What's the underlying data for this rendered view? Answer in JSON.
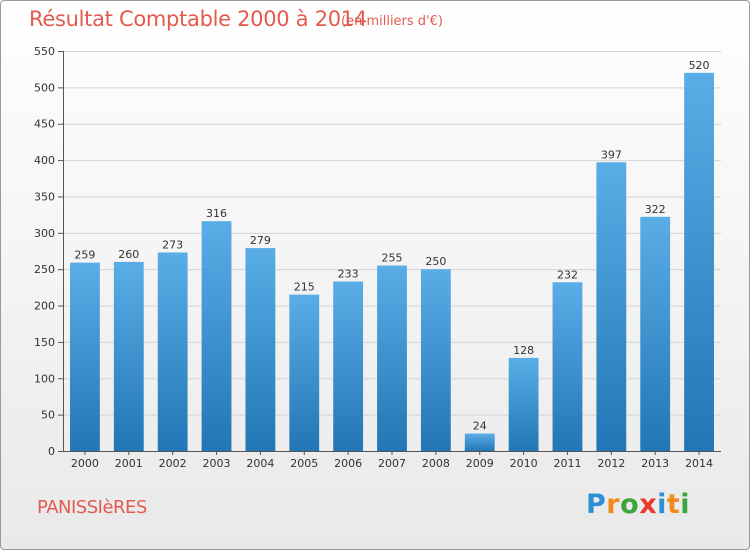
{
  "header": {
    "title": "Résultat Comptable 2000 à 2014",
    "subtitle": "(en milliers d'€)"
  },
  "footer": {
    "commune": "PANISSIèRES",
    "logo_text": "Proxiti",
    "logo_letter_colors": [
      "#2d8fd6",
      "#f08a1c",
      "#3aa63a",
      "#e8372b",
      "#2d8fd6",
      "#f08a1c",
      "#3aa63a"
    ]
  },
  "colors": {
    "bar_top": "#5aade6",
    "bar_bottom": "#2276b5",
    "title": "#e35a4f",
    "grid": "#d4d4d4",
    "axis": "#555555"
  },
  "chart_data": {
    "type": "bar",
    "categories": [
      "2000",
      "2001",
      "2002",
      "2003",
      "2004",
      "2005",
      "2006",
      "2007",
      "2008",
      "2009",
      "2010",
      "2011",
      "2012",
      "2013",
      "2014"
    ],
    "values": [
      259,
      260,
      273,
      316,
      279,
      215,
      233,
      255,
      250,
      24,
      128,
      232,
      397,
      322,
      520
    ],
    "title": "Résultat Comptable 2000 à 2014",
    "subtitle": "(en milliers d'€)",
    "xlabel": "",
    "ylabel": "",
    "ylim": [
      0,
      550
    ],
    "yticks": [
      0,
      50,
      100,
      150,
      200,
      250,
      300,
      350,
      400,
      450,
      500,
      550
    ],
    "grid": true,
    "legend": "none"
  }
}
